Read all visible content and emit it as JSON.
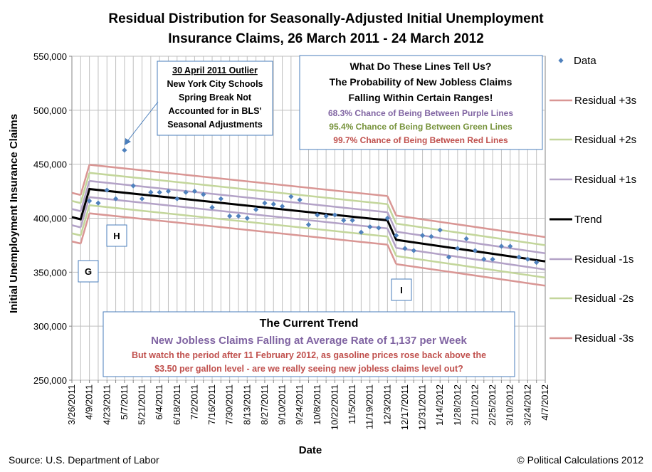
{
  "chart_data": {
    "type": "line",
    "title_lines": [
      "Residual Distribution for Seasonally-Adjusted Initial Unemployment",
      "Insurance Claims, 26 March 2011 - 24 March 2012"
    ],
    "xlabel": "Date",
    "ylabel": "Initial Unemployment Insurance Claims",
    "ylim": [
      250000,
      550000
    ],
    "y_ticks": [
      "250,000",
      "300,000",
      "350,000",
      "400,000",
      "450,000",
      "500,000",
      "550,000"
    ],
    "y_tick_values": [
      250000,
      300000,
      350000,
      400000,
      450000,
      500000,
      550000
    ],
    "x_tick_labels": [
      "3/26/2011",
      "4/9/2011",
      "4/23/2011",
      "5/7/2011",
      "5/21/2011",
      "6/4/2011",
      "6/18/2011",
      "7/2/2011",
      "7/16/2011",
      "7/30/2011",
      "8/13/2011",
      "8/27/2011",
      "9/10/2011",
      "9/24/2011",
      "10/8/2011",
      "10/22/2011",
      "11/5/2011",
      "11/19/2011",
      "12/3/2011",
      "12/17/2011",
      "12/31/2011",
      "1/14/2012",
      "1/28/2012",
      "2/11/2012",
      "2/25/2012",
      "3/10/2012",
      "3/24/2012",
      "4/7/2012"
    ],
    "weeks_total": 54,
    "data_points": [
      {
        "week": 2,
        "value": 416000
      },
      {
        "week": 3,
        "value": 414000
      },
      {
        "week": 4,
        "value": 426000
      },
      {
        "week": 5,
        "value": 418000
      },
      {
        "week": 6,
        "value": 463000
      },
      {
        "week": 7,
        "value": 430000
      },
      {
        "week": 8,
        "value": 418000
      },
      {
        "week": 9,
        "value": 424000
      },
      {
        "week": 10,
        "value": 424000
      },
      {
        "week": 11,
        "value": 425000
      },
      {
        "week": 12,
        "value": 418000
      },
      {
        "week": 13,
        "value": 424000
      },
      {
        "week": 14,
        "value": 425000
      },
      {
        "week": 15,
        "value": 422000
      },
      {
        "week": 16,
        "value": 410000
      },
      {
        "week": 17,
        "value": 418000
      },
      {
        "week": 18,
        "value": 402000
      },
      {
        "week": 19,
        "value": 402000
      },
      {
        "week": 20,
        "value": 400000
      },
      {
        "week": 21,
        "value": 408000
      },
      {
        "week": 22,
        "value": 414000
      },
      {
        "week": 23,
        "value": 413000
      },
      {
        "week": 24,
        "value": 411000
      },
      {
        "week": 25,
        "value": 420000
      },
      {
        "week": 26,
        "value": 417000
      },
      {
        "week": 27,
        "value": 394000
      },
      {
        "week": 28,
        "value": 403000
      },
      {
        "week": 29,
        "value": 402000
      },
      {
        "week": 30,
        "value": 403000
      },
      {
        "week": 31,
        "value": 398000
      },
      {
        "week": 32,
        "value": 398000
      },
      {
        "week": 33,
        "value": 387000
      },
      {
        "week": 34,
        "value": 392000
      },
      {
        "week": 35,
        "value": 391000
      },
      {
        "week": 36,
        "value": 400000
      },
      {
        "week": 37,
        "value": 384000
      },
      {
        "week": 38,
        "value": 372000
      },
      {
        "week": 39,
        "value": 370000
      },
      {
        "week": 40,
        "value": 384000
      },
      {
        "week": 41,
        "value": 383000
      },
      {
        "week": 42,
        "value": 389000
      },
      {
        "week": 43,
        "value": 364000
      },
      {
        "week": 44,
        "value": 372000
      },
      {
        "week": 45,
        "value": 381000
      },
      {
        "week": 46,
        "value": 370000
      },
      {
        "week": 47,
        "value": 362000
      },
      {
        "week": 48,
        "value": 362000
      },
      {
        "week": 49,
        "value": 374000
      },
      {
        "week": 50,
        "value": 374000
      },
      {
        "week": 51,
        "value": 364000
      },
      {
        "week": 52,
        "value": 362000
      },
      {
        "week": 53,
        "value": 359000
      }
    ],
    "trend_segments": [
      {
        "x": [
          0,
          1
        ],
        "y": [
          401000,
          399000
        ]
      },
      {
        "x": [
          2,
          36
        ],
        "y": [
          427000,
          398000
        ]
      },
      {
        "x": [
          37,
          54
        ],
        "y": [
          380000,
          360000
        ]
      }
    ],
    "sigma": 7500,
    "bands": [
      {
        "name": "Residual +3s",
        "k": 3,
        "color": "#d99694"
      },
      {
        "name": "Residual +2s",
        "k": 2,
        "color": "#c3d69b"
      },
      {
        "name": "Residual +1s",
        "k": 1,
        "color": "#b3a2c7"
      },
      {
        "name": "Residual -1s",
        "k": -1,
        "color": "#b3a2c7"
      },
      {
        "name": "Residual -2s",
        "k": -2,
        "color": "#c3d69b"
      },
      {
        "name": "Residual -3s",
        "k": -3,
        "color": "#d99694"
      }
    ],
    "legend": [
      {
        "label": "Data",
        "kind": "marker",
        "color": "#4f81bd"
      },
      {
        "label": "Residual +3s",
        "kind": "line",
        "color": "#d99694"
      },
      {
        "label": "Residual +2s",
        "kind": "line",
        "color": "#c3d69b"
      },
      {
        "label": "Residual +1s",
        "kind": "line",
        "color": "#b3a2c7"
      },
      {
        "label": "Trend",
        "kind": "trend",
        "color": "#000000"
      },
      {
        "label": "Residual -1s",
        "kind": "line",
        "color": "#b3a2c7"
      },
      {
        "label": "Residual -2s",
        "kind": "line",
        "color": "#c3d69b"
      },
      {
        "label": "Residual -3s",
        "kind": "line",
        "color": "#d99694"
      }
    ],
    "legend_position": "right",
    "outlier_note": {
      "heading": "30 April 2011 Outlier",
      "lines": [
        "New York City Schools",
        "Spring Break Not",
        "Accounted for in BLS'",
        "Seasonal Adjustments"
      ]
    },
    "info_box": {
      "heading_lines": [
        "What Do These Lines Tell Us?",
        "The Probability of New Jobless Claims",
        "Falling Within Certain Ranges!"
      ],
      "items": [
        {
          "text": "68.3% Chance of Being Between Purple Lines",
          "color": "#8064a2"
        },
        {
          "text": "95.4% Chance of Being Between Green Lines",
          "color": "#77933c"
        },
        {
          "text": "99.7% Chance of Being Between Red Lines",
          "color": "#c0504d"
        }
      ]
    },
    "trend_box": {
      "heading": "The Current Trend",
      "line1": "New Jobless Claims Falling at Average Rate of 1,137 per Week",
      "line1_color": "#8064a2",
      "line2": "But watch the period after 11 February 2012, as gasoline prices rose back above the",
      "line3": "$3.50 per gallon level - are we really seeing new jobless claims level out?",
      "line23_color": "#c0504d"
    },
    "regions": [
      "G",
      "H",
      "I"
    ]
  },
  "footer": {
    "source": "Source: U.S. Department of Labor",
    "copyright": "© Political Calculations 2012"
  },
  "colors": {
    "data_marker": "#4f81bd",
    "grid": "#bfbfbf",
    "box_border": "#4a7ebb",
    "arrow": "#4a7ebb"
  }
}
